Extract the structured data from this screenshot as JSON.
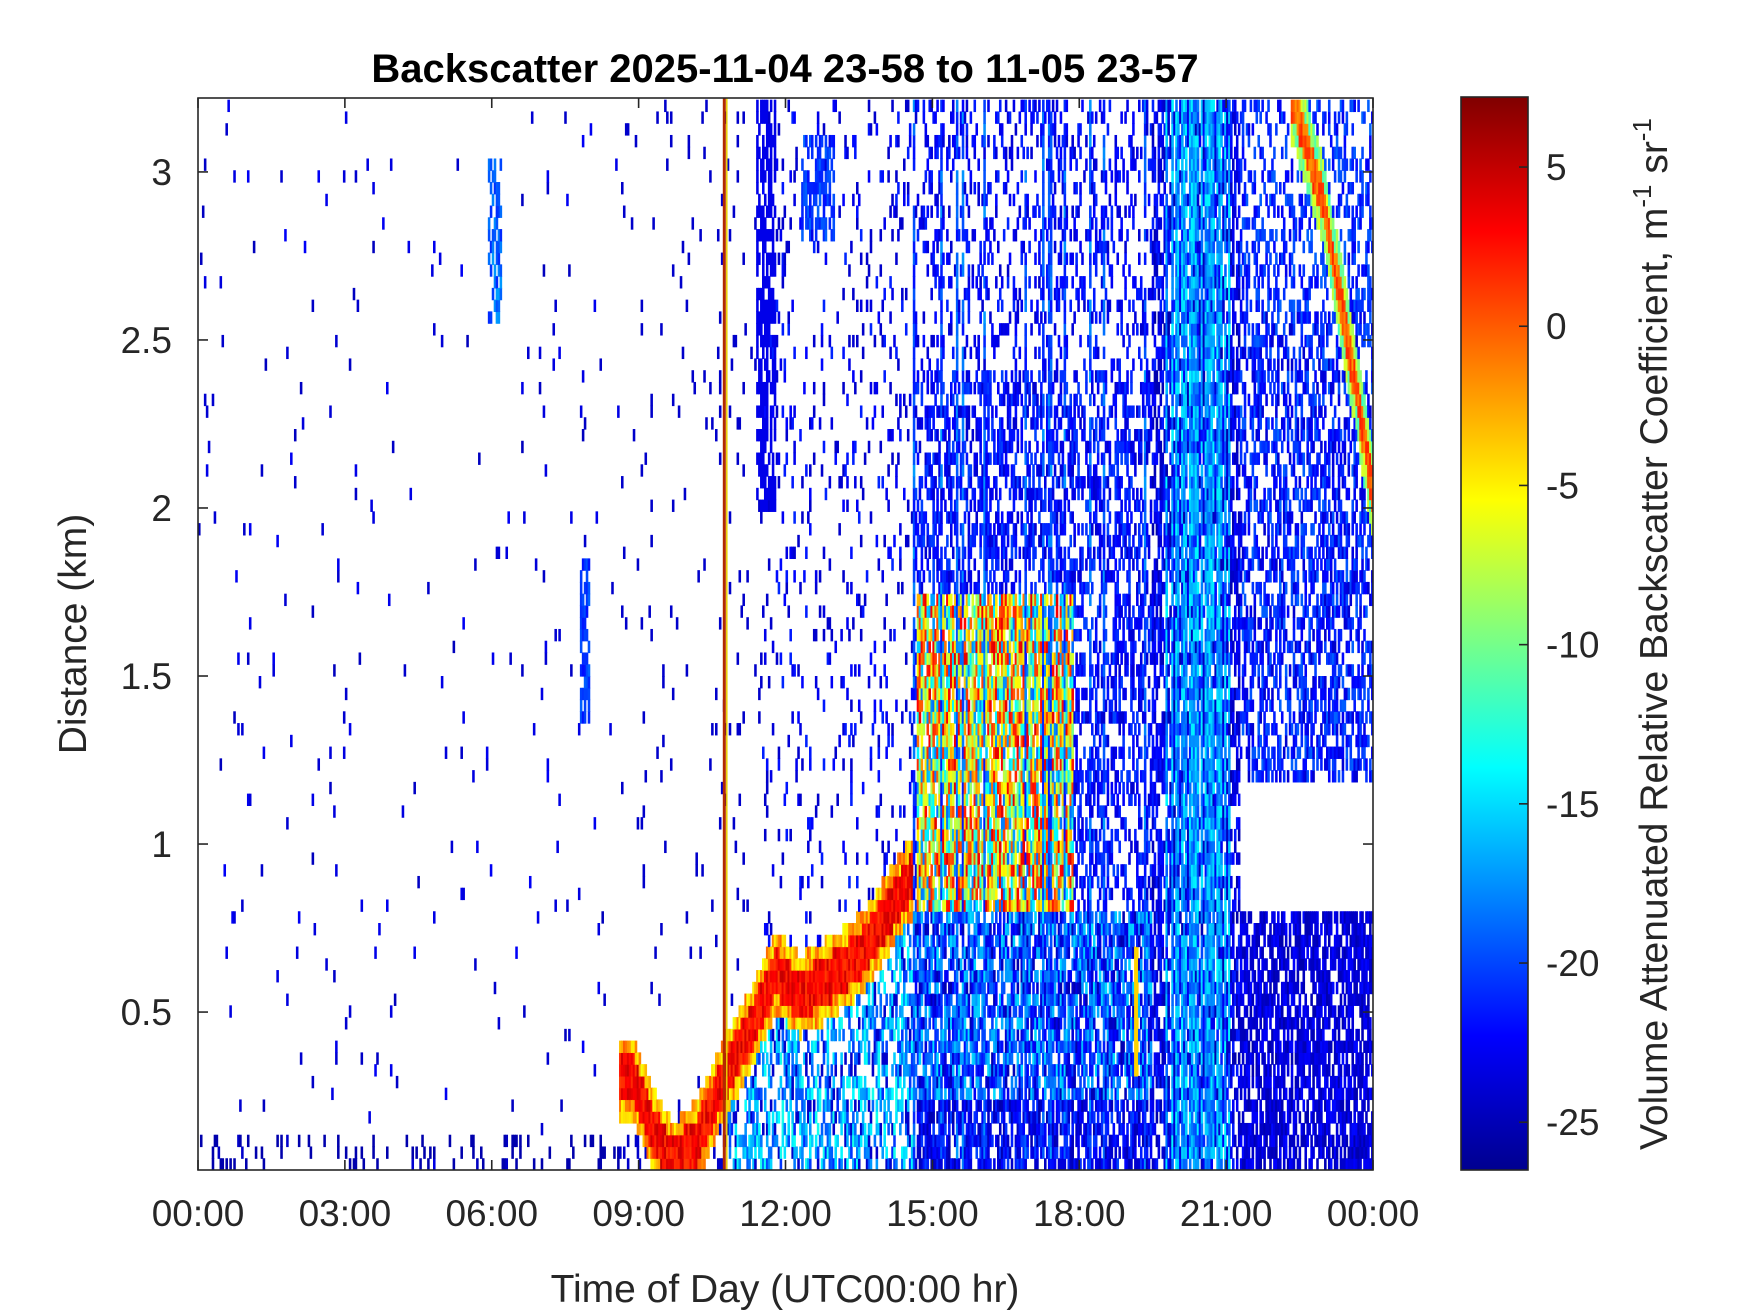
{
  "chart_data": {
    "type": "heatmap",
    "title": "Backscatter 2025-11-04 23-58 to 11-05 23-57",
    "xlabel": "Time of Day (UTC00:00 hr)",
    "ylabel": "Distance (km)",
    "colorbar_label": "Volume Attenuated Relative Backscatter Coefficient, m",
    "colorbar_label_sup1": "-1",
    "colorbar_label_mid": " sr",
    "colorbar_label_sup2": "-1",
    "colormap": "jet",
    "x_unit": "hours UTC",
    "xlim": [
      0,
      24
    ],
    "ylim": [
      0.03,
      3.22
    ],
    "clim": [
      -26.5,
      7.2
    ],
    "x_ticks": [
      0,
      3,
      6,
      9,
      12,
      15,
      18,
      21,
      24
    ],
    "x_tick_labels": [
      "00:00",
      "03:00",
      "06:00",
      "09:00",
      "12:00",
      "15:00",
      "18:00",
      "21:00",
      "00:00"
    ],
    "y_ticks": [
      0.5,
      1,
      1.5,
      2,
      2.5,
      3
    ],
    "y_tick_labels": [
      "0.5",
      "1",
      "1.5",
      "2",
      "2.5",
      "3"
    ],
    "c_ticks": [
      -25,
      -20,
      -15,
      -10,
      -5,
      0,
      5
    ],
    "c_tick_labels": [
      "-25",
      "-20",
      "-15",
      "-10",
      "-5",
      "0",
      "5"
    ],
    "features": [
      {
        "name": "rising boundary layer",
        "x": [
          8.9,
          9.3,
          9.7,
          10.2,
          10.8,
          11.3,
          11.8,
          12.3,
          12.9,
          13.6,
          14.2,
          14.8
        ],
        "y": [
          0.3,
          0.15,
          0.05,
          0.12,
          0.32,
          0.45,
          0.62,
          0.55,
          0.6,
          0.68,
          0.82,
          0.95
        ],
        "value": 2
      },
      {
        "name": "instrument artifact",
        "x": [
          10.75,
          10.75
        ],
        "y": [
          0.03,
          3.22
        ],
        "value": 3
      },
      {
        "name": "afternoon convective cloud",
        "x_range": [
          14.7,
          17.9
        ],
        "y_range": [
          0.8,
          1.75
        ],
        "value": -3
      },
      {
        "name": "late descending layer",
        "x": [
          22.4,
          23.0,
          23.6,
          24.0
        ],
        "y": [
          3.2,
          2.9,
          2.4,
          2.05
        ],
        "value": 1
      },
      {
        "name": "night surface layer",
        "x_range": [
          19.5,
          24.0
        ],
        "y_range": [
          0.03,
          0.75
        ],
        "value": -24
      }
    ]
  }
}
